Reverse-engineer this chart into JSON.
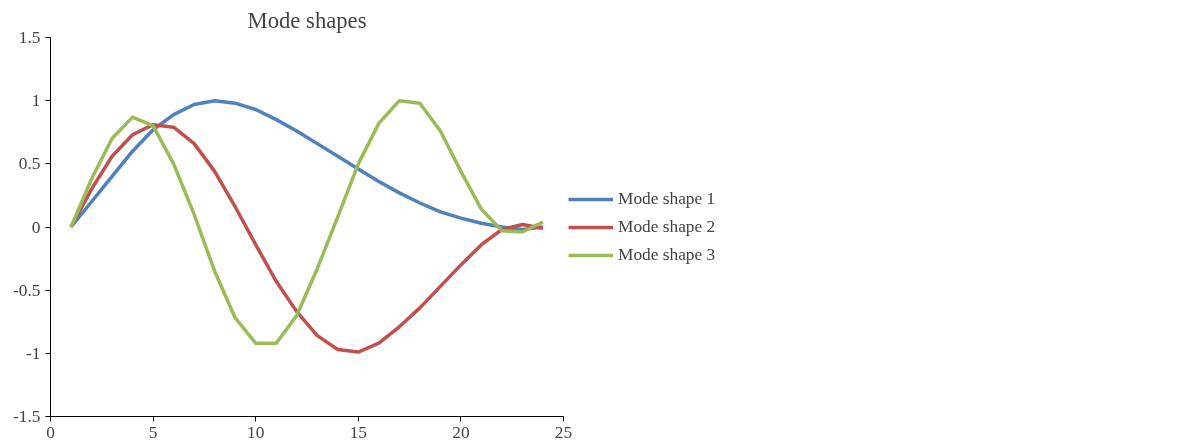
{
  "chart_data": {
    "type": "line",
    "title": "Mode shapes",
    "x": [
      1,
      2,
      3,
      4,
      5,
      6,
      7,
      8,
      9,
      10,
      11,
      12,
      13,
      14,
      15,
      16,
      17,
      18,
      19,
      20,
      21,
      22,
      23,
      24
    ],
    "series": [
      {
        "name": "Mode shape 1",
        "color": "#4f81bd",
        "values": [
          0,
          0.2,
          0.4,
          0.6,
          0.77,
          0.89,
          0.97,
          1.0,
          0.98,
          0.93,
          0.85,
          0.76,
          0.66,
          0.56,
          0.46,
          0.36,
          0.27,
          0.19,
          0.12,
          0.07,
          0.03,
          0.0,
          -0.02,
          0.0
        ]
      },
      {
        "name": "Mode shape 2",
        "color": "#c0504d",
        "values": [
          0,
          0.3,
          0.56,
          0.73,
          0.81,
          0.79,
          0.66,
          0.44,
          0.16,
          -0.14,
          -0.43,
          -0.67,
          -0.86,
          -0.97,
          -0.99,
          -0.92,
          -0.79,
          -0.64,
          -0.47,
          -0.3,
          -0.14,
          -0.02,
          0.02,
          -0.01
        ]
      },
      {
        "name": "Mode shape 3",
        "color": "#9bbb59",
        "values": [
          0,
          0.38,
          0.7,
          0.87,
          0.8,
          0.5,
          0.1,
          -0.35,
          -0.72,
          -0.92,
          -0.92,
          -0.7,
          -0.33,
          0.08,
          0.5,
          0.82,
          1.0,
          0.98,
          0.76,
          0.44,
          0.14,
          -0.03,
          -0.04,
          0.04
        ]
      }
    ],
    "xlim": [
      0,
      25
    ],
    "xticks": [
      0,
      5,
      10,
      15,
      20,
      25
    ],
    "ylim": [
      -1.5,
      1.5
    ],
    "yticks": [
      -1.5,
      -1,
      -0.5,
      0,
      0.5,
      1,
      1.5
    ],
    "grid": false,
    "legend": "right",
    "marker": "none",
    "line_style": "solid"
  }
}
